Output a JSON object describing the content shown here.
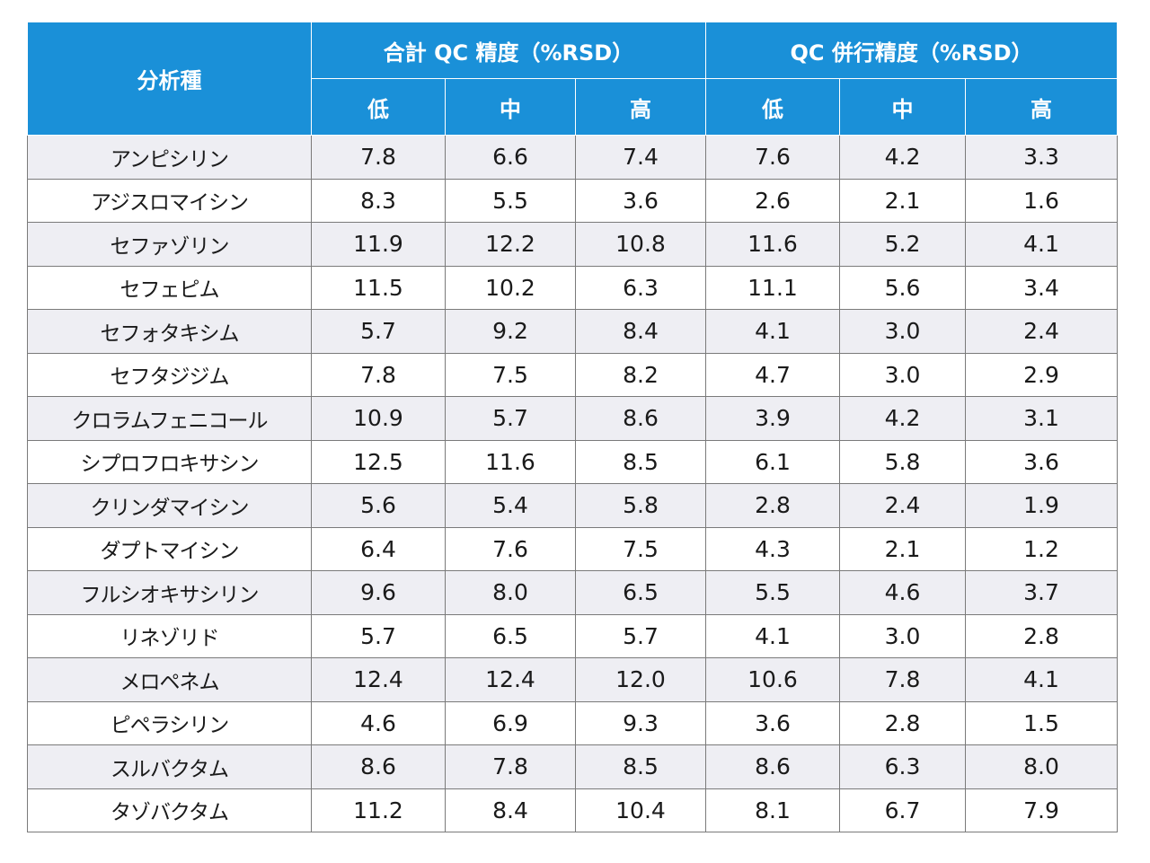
{
  "table": {
    "header": {
      "analyte": "分析種",
      "group_total": "合計 QC 精度（%RSD）",
      "group_parallel": "QC 併行精度（%RSD）",
      "levels": [
        "低",
        "中",
        "高",
        "低",
        "中",
        "高"
      ]
    },
    "rows": [
      {
        "name": "アンピシリン",
        "values": [
          "7.8",
          "6.6",
          "7.4",
          "7.6",
          "4.2",
          "3.3"
        ]
      },
      {
        "name": "アジスロマイシン",
        "values": [
          "8.3",
          "5.5",
          "3.6",
          "2.6",
          "2.1",
          "1.6"
        ]
      },
      {
        "name": "セファゾリン",
        "values": [
          "11.9",
          "12.2",
          "10.8",
          "11.6",
          "5.2",
          "4.1"
        ]
      },
      {
        "name": "セフェピム",
        "values": [
          "11.5",
          "10.2",
          "6.3",
          "11.1",
          "5.6",
          "3.4"
        ]
      },
      {
        "name": "セフォタキシム",
        "values": [
          "5.7",
          "9.2",
          "8.4",
          "4.1",
          "3.0",
          "2.4"
        ]
      },
      {
        "name": "セフタジジム",
        "values": [
          "7.8",
          "7.5",
          "8.2",
          "4.7",
          "3.0",
          "2.9"
        ]
      },
      {
        "name": "クロラムフェニコール",
        "values": [
          "10.9",
          "5.7",
          "8.6",
          "3.9",
          "4.2",
          "3.1"
        ]
      },
      {
        "name": "シプロフロキサシン",
        "values": [
          "12.5",
          "11.6",
          "8.5",
          "6.1",
          "5.8",
          "3.6"
        ]
      },
      {
        "name": "クリンダマイシン",
        "values": [
          "5.6",
          "5.4",
          "5.8",
          "2.8",
          "2.4",
          "1.9"
        ]
      },
      {
        "name": "ダプトマイシン",
        "values": [
          "6.4",
          "7.6",
          "7.5",
          "4.3",
          "2.1",
          "1.2"
        ]
      },
      {
        "name": "フルシオキサシリン",
        "values": [
          "9.6",
          "8.0",
          "6.5",
          "5.5",
          "4.6",
          "3.7"
        ]
      },
      {
        "name": "リネゾリド",
        "values": [
          "5.7",
          "6.5",
          "5.7",
          "4.1",
          "3.0",
          "2.8"
        ]
      },
      {
        "name": "メロペネム",
        "values": [
          "12.4",
          "12.4",
          "12.0",
          "10.6",
          "7.8",
          "4.1"
        ]
      },
      {
        "name": "ピペラシリン",
        "values": [
          "4.6",
          "6.9",
          "9.3",
          "3.6",
          "2.8",
          "1.5"
        ]
      },
      {
        "name": "スルバクタム",
        "values": [
          "8.6",
          "7.8",
          "8.5",
          "8.6",
          "6.3",
          "8.0"
        ]
      },
      {
        "name": "タゾバクタム",
        "values": [
          "11.2",
          "8.4",
          "10.4",
          "8.1",
          "6.7",
          "7.9"
        ]
      }
    ]
  },
  "colors": {
    "header_bg": "#1a90d8",
    "header_text": "#ffffff",
    "row_alt_bg": "#eeeef3",
    "border": "#7a7a7a"
  }
}
